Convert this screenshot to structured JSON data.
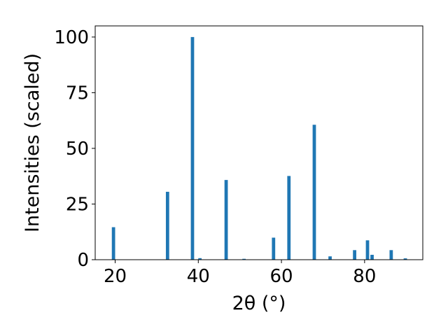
{
  "chart_data": {
    "type": "bar",
    "title": "",
    "xlabel": "2θ (°)",
    "ylabel": "Intensities (scaled)",
    "xlim": [
      15.2,
      94.0
    ],
    "ylim": [
      0,
      105
    ],
    "xticks": [
      20,
      40,
      60,
      80
    ],
    "yticks": [
      0,
      25,
      50,
      75,
      100
    ],
    "bar_width": 0.8,
    "grid": false,
    "legend": "none",
    "color": "#1f77b4",
    "points": [
      {
        "x": 19.6,
        "y": 14.6
      },
      {
        "x": 32.6,
        "y": 30.5
      },
      {
        "x": 38.6,
        "y": 100
      },
      {
        "x": 40.4,
        "y": 0.7
      },
      {
        "x": 46.7,
        "y": 35.8
      },
      {
        "x": 51.0,
        "y": 0.4
      },
      {
        "x": 58.1,
        "y": 9.9
      },
      {
        "x": 61.8,
        "y": 37.6
      },
      {
        "x": 67.9,
        "y": 60.6
      },
      {
        "x": 71.7,
        "y": 1.5
      },
      {
        "x": 77.6,
        "y": 4.3
      },
      {
        "x": 80.7,
        "y": 8.7
      },
      {
        "x": 81.8,
        "y": 2.2
      },
      {
        "x": 86.4,
        "y": 4.3
      },
      {
        "x": 89.8,
        "y": 0.6
      }
    ]
  }
}
